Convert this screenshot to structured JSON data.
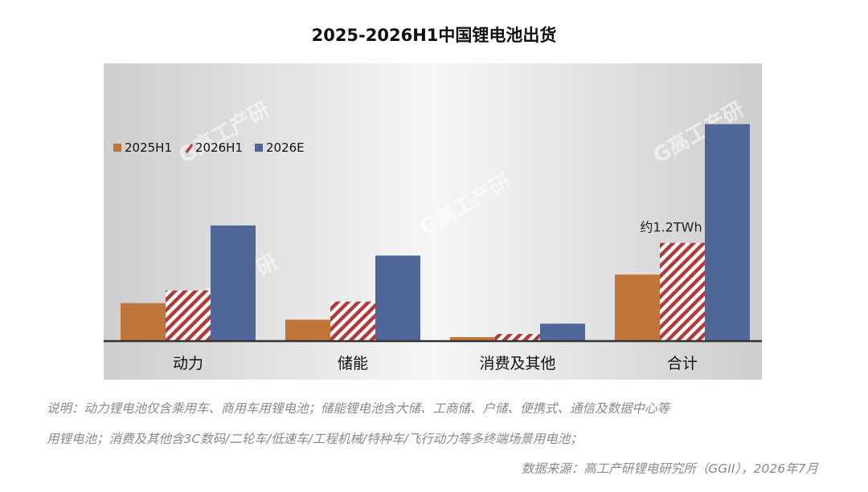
{
  "title": "2025-2026H1中国锂电池出货",
  "colors": {
    "s2025h1": "#c0763a",
    "s2026h1": "#b33a3a",
    "s2026e": "#4f6798",
    "axis": "#333333"
  },
  "chart_data": {
    "type": "bar",
    "categories": [
      "动力",
      "储能",
      "消费及其他",
      "合计"
    ],
    "series": [
      {
        "name": "2025H1",
        "values": [
          0.24,
          0.135,
          0.025,
          0.42
        ],
        "style": "solid"
      },
      {
        "name": "2026H1",
        "values": [
          0.32,
          0.25,
          0.045,
          0.62
        ],
        "style": "hatched"
      },
      {
        "name": "2026E",
        "values": [
          0.73,
          0.54,
          0.11,
          1.37
        ],
        "style": "solid"
      }
    ],
    "ylim": [
      0,
      1.5
    ],
    "grid": false,
    "legend_position": "top-left",
    "annotation": {
      "text": "约1.2TWh",
      "category": "合计"
    },
    "watermark": "G高工产研"
  },
  "notes": {
    "line1": "说明：动力锂电池仅含乘用车、商用车用锂电池；储能锂电池含大储、工商储、户储、便携式、通信及数据中心等",
    "line2": "用锂电池；消费及其他含3C数码/二轮车/低速车/工程机械/特种车/飞行动力等多终端场景用电池；",
    "source": "数据来源：高工产研锂电研究所（GGII），2026年7月"
  }
}
